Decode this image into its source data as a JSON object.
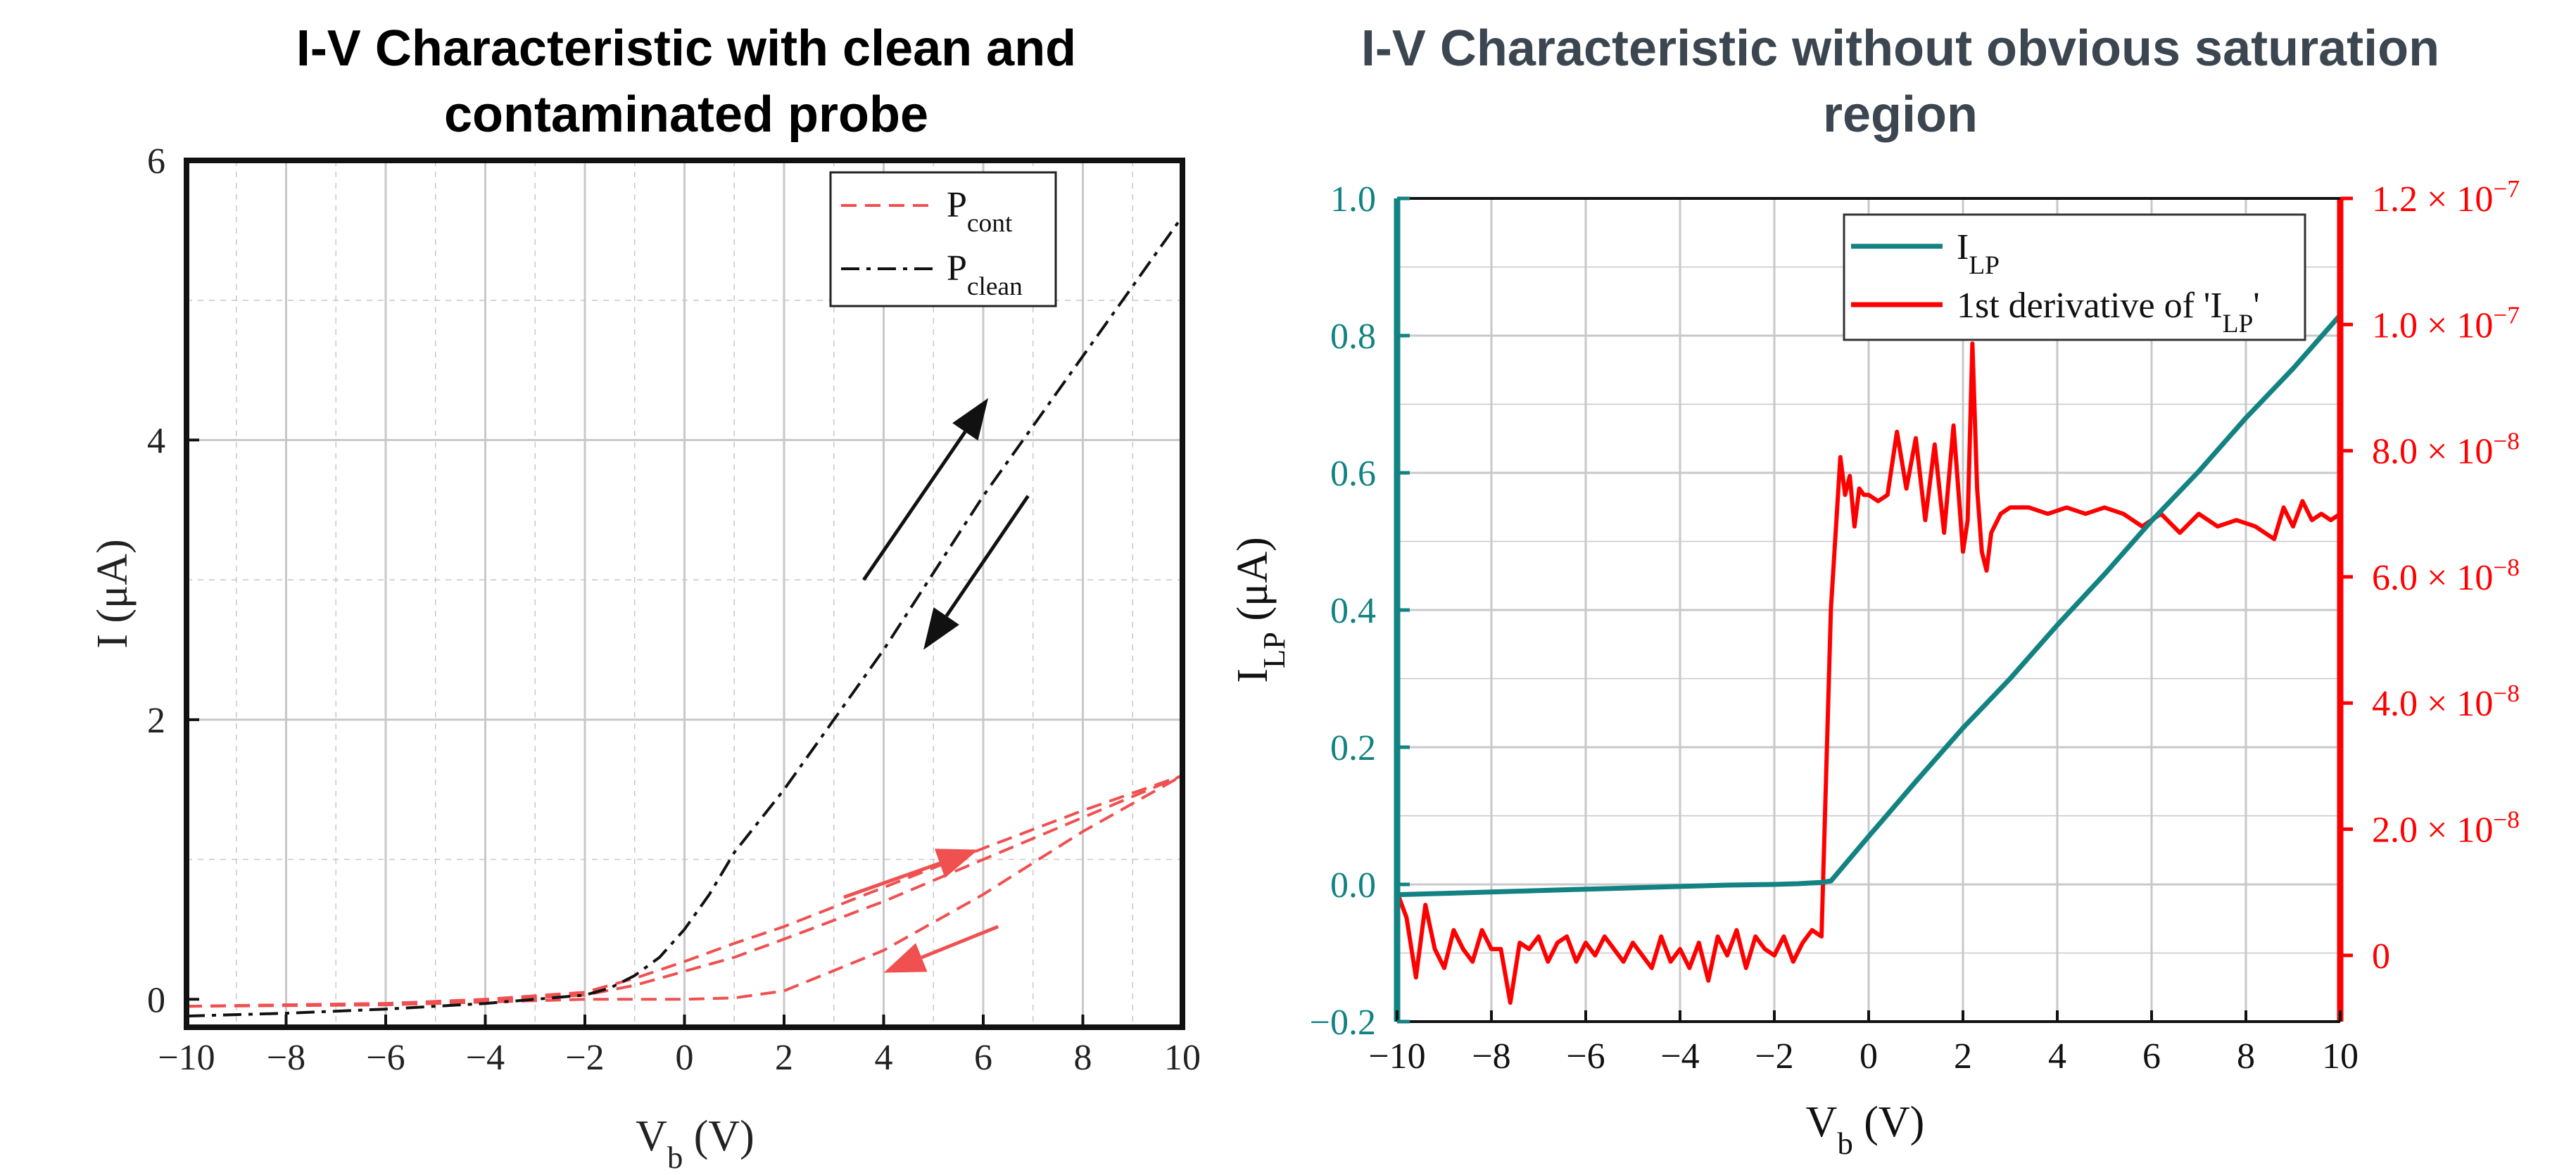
{
  "colors": {
    "left_contaminated": "#f05050",
    "left_clean": "#111111",
    "right_ilp": "#138282",
    "right_derivative": "#ff0000",
    "grid": "#c8c8c8",
    "left_axis_text": "#222222",
    "right_left_axis": "#138282",
    "right_right_axis": "#ff0000"
  },
  "chart_data": [
    {
      "type": "line",
      "title": "I-V Characteristic with clean and contaminated probe",
      "xlabel": {
        "main": "V",
        "sub": "b",
        "unit": " (V)"
      },
      "ylabel": "I (μA)",
      "xlim": [
        -10,
        10
      ],
      "ylim": [
        -0.2,
        6
      ],
      "xticks": [
        "−10",
        "−8",
        "−6",
        "−4",
        "−2",
        "0",
        "2",
        "4",
        "6",
        "8",
        "10"
      ],
      "xtick_values": [
        -10,
        -8,
        -6,
        -4,
        -2,
        0,
        2,
        4,
        6,
        8,
        10
      ],
      "yticks": [
        "0",
        "2",
        "4",
        "6"
      ],
      "ytick_values": [
        0,
        2,
        4,
        6
      ],
      "grid": true,
      "legend_position": "top-right",
      "series": [
        {
          "name": "P",
          "name_sub": "cont",
          "style": "dashed",
          "branches": [
            {
              "x": [
                -10,
                -6,
                -4,
                -2,
                -1,
                0,
                1,
                2,
                4,
                6,
                8,
                10
              ],
              "y": [
                -0.05,
                -0.04,
                -0.02,
                0.0,
                0.0,
                0.0,
                0.01,
                0.06,
                0.35,
                0.75,
                1.2,
                1.6
              ]
            },
            {
              "x": [
                -10,
                -6,
                -4,
                -2,
                -1,
                0,
                1,
                2,
                4,
                6,
                8,
                10
              ],
              "y": [
                -0.05,
                -0.03,
                -0.01,
                0.03,
                0.1,
                0.2,
                0.3,
                0.43,
                0.7,
                1.0,
                1.3,
                1.6
              ]
            },
            {
              "x": [
                -10,
                -6,
                -4,
                -2,
                -1,
                0,
                1,
                2,
                4,
                6,
                8,
                10
              ],
              "y": [
                -0.05,
                -0.03,
                0.0,
                0.05,
                0.15,
                0.27,
                0.4,
                0.52,
                0.8,
                1.08,
                1.35,
                1.6
              ]
            }
          ]
        },
        {
          "name": "P",
          "name_sub": "clean",
          "style": "dashdot",
          "branches": [
            {
              "x": [
                -10,
                -8,
                -6,
                -4,
                -2,
                -1.5,
                -1,
                -0.5,
                0,
                0.5,
                1,
                2,
                4,
                6,
                8,
                10
              ],
              "y": [
                -0.12,
                -0.1,
                -0.07,
                -0.03,
                0.03,
                0.08,
                0.17,
                0.3,
                0.5,
                0.75,
                1.05,
                1.5,
                2.5,
                3.6,
                4.6,
                5.6
              ]
            }
          ]
        }
      ],
      "annotations": [
        {
          "type": "arrow",
          "color": "black",
          "from": [
            3.6,
            3.0
          ],
          "to": [
            6.1,
            4.3
          ]
        },
        {
          "type": "arrow",
          "color": "black",
          "from": [
            6.9,
            3.6
          ],
          "to": [
            4.8,
            2.5
          ]
        },
        {
          "type": "arrow",
          "color": "red",
          "from": [
            3.2,
            0.73
          ],
          "to": [
            5.9,
            1.07
          ]
        },
        {
          "type": "arrow",
          "color": "red",
          "from": [
            6.3,
            0.52
          ],
          "to": [
            4.0,
            0.19
          ]
        }
      ]
    },
    {
      "type": "line",
      "title": "I-V Characteristic without obvious saturation region",
      "xlabel": {
        "main": "V",
        "sub": "b",
        "unit": " (V)"
      },
      "ylabel": {
        "main": "I",
        "sub": "LP",
        "unit": " (μA)"
      },
      "xlim": [
        -10,
        10
      ],
      "ylim": [
        -0.2,
        1.0
      ],
      "y2lim": [
        -1.05e-08,
        1.2e-07
      ],
      "xticks": [
        "−10",
        "−8",
        "−6",
        "−4",
        "−2",
        "0",
        "2",
        "4",
        "6",
        "8",
        "10"
      ],
      "xtick_values": [
        -10,
        -8,
        -6,
        -4,
        -2,
        0,
        2,
        4,
        6,
        8,
        10
      ],
      "yticks": [
        "−0.2",
        "0.0",
        "0.2",
        "0.4",
        "0.6",
        "0.8",
        "1.0"
      ],
      "ytick_values": [
        -0.2,
        0.0,
        0.2,
        0.4,
        0.6,
        0.8,
        1.0
      ],
      "y2ticks": [
        {
          "mant": "0",
          "exp": ""
        },
        {
          "mant": "2.0 × 10",
          "exp": "−8"
        },
        {
          "mant": "4.0 × 10",
          "exp": "−8"
        },
        {
          "mant": "6.0 × 10",
          "exp": "−8"
        },
        {
          "mant": "8.0 × 10",
          "exp": "−8"
        },
        {
          "mant": "1.0 × 10",
          "exp": "−7"
        },
        {
          "mant": "1.2 × 10",
          "exp": "−7"
        }
      ],
      "y2tick_values": [
        0,
        2e-08,
        4e-08,
        6e-08,
        8e-08,
        1e-07,
        1.2e-07
      ],
      "grid": true,
      "legend_position": "top-right",
      "series": [
        {
          "name": "I",
          "name_sub": "LP",
          "axis": "left",
          "x": [
            -10,
            -9,
            -8,
            -7,
            -6,
            -5,
            -4,
            -3,
            -2,
            -1.5,
            -1,
            -0.9,
            -0.8,
            0,
            1,
            2,
            3,
            4,
            5,
            6,
            7,
            8,
            9,
            10
          ],
          "y": [
            -0.015,
            -0.013,
            -0.011,
            -0.009,
            -0.007,
            -0.005,
            -0.003,
            -0.001,
            0.0,
            0.001,
            0.003,
            0.004,
            0.005,
            0.07,
            0.15,
            0.228,
            0.3,
            0.378,
            0.452,
            0.53,
            0.602,
            0.68,
            0.752,
            0.83
          ]
        },
        {
          "name": "1st derivative of 'I",
          "name_sub": "LP",
          "name_suffix": "'",
          "axis": "right",
          "x": [
            -10,
            -9.8,
            -9.6,
            -9.4,
            -9.2,
            -9.0,
            -8.8,
            -8.6,
            -8.4,
            -8.2,
            -8.0,
            -7.8,
            -7.6,
            -7.4,
            -7.2,
            -7.0,
            -6.8,
            -6.6,
            -6.4,
            -6.2,
            -6.0,
            -5.8,
            -5.6,
            -5.4,
            -5.2,
            -5.0,
            -4.8,
            -4.6,
            -4.4,
            -4.2,
            -4.0,
            -3.8,
            -3.6,
            -3.4,
            -3.2,
            -3.0,
            -2.8,
            -2.6,
            -2.4,
            -2.2,
            -2.0,
            -1.8,
            -1.6,
            -1.4,
            -1.2,
            -1.0,
            -0.8,
            -0.6,
            -0.5,
            -0.4,
            -0.3,
            -0.2,
            -0.1,
            0.0,
            0.2,
            0.4,
            0.6,
            0.8,
            1.0,
            1.2,
            1.4,
            1.6,
            1.8,
            2.0,
            2.1,
            2.2,
            2.3,
            2.4,
            2.5,
            2.6,
            2.8,
            3.0,
            3.4,
            3.8,
            4.2,
            4.6,
            5.0,
            5.4,
            5.8,
            6.2,
            6.6,
            7.0,
            7.4,
            7.8,
            8.2,
            8.6,
            8.8,
            9.0,
            9.2,
            9.4,
            9.6,
            9.8,
            10.0
          ],
          "y": [
            1e-08,
            6e-09,
            -3.5e-09,
            8e-09,
            1e-09,
            -2e-09,
            4e-09,
            1e-09,
            -1e-09,
            4e-09,
            1e-09,
            1e-09,
            -7.5e-09,
            2e-09,
            1e-09,
            3e-09,
            -1e-09,
            2e-09,
            3e-09,
            -1e-09,
            2e-09,
            0,
            3e-09,
            1e-09,
            -1e-09,
            2e-09,
            0,
            -2e-09,
            3e-09,
            -1e-09,
            1e-09,
            -2e-09,
            2e-09,
            -4e-09,
            3e-09,
            0,
            4e-09,
            -2e-09,
            3e-09,
            1e-09,
            0,
            3e-09,
            -1e-09,
            2e-09,
            4e-09,
            3e-09,
            5.5e-08,
            7.9e-08,
            7.3e-08,
            7.6e-08,
            6.8e-08,
            7.4e-08,
            7.3e-08,
            7.3e-08,
            7.2e-08,
            7.3e-08,
            8.3e-08,
            7.4e-08,
            8.2e-08,
            6.9e-08,
            8.1e-08,
            6.7e-08,
            8.4e-08,
            6.4e-08,
            6.9e-08,
            9.7e-08,
            7.4e-08,
            6.4e-08,
            6.1e-08,
            6.7e-08,
            7e-08,
            7.1e-08,
            7.1e-08,
            7e-08,
            7.1e-08,
            7e-08,
            7.1e-08,
            7e-08,
            6.8e-08,
            7e-08,
            6.7e-08,
            7e-08,
            6.8e-08,
            6.9e-08,
            6.8e-08,
            6.6e-08,
            7.1e-08,
            6.8e-08,
            7.2e-08,
            6.9e-08,
            7e-08,
            6.9e-08,
            7e-08
          ]
        }
      ]
    }
  ]
}
